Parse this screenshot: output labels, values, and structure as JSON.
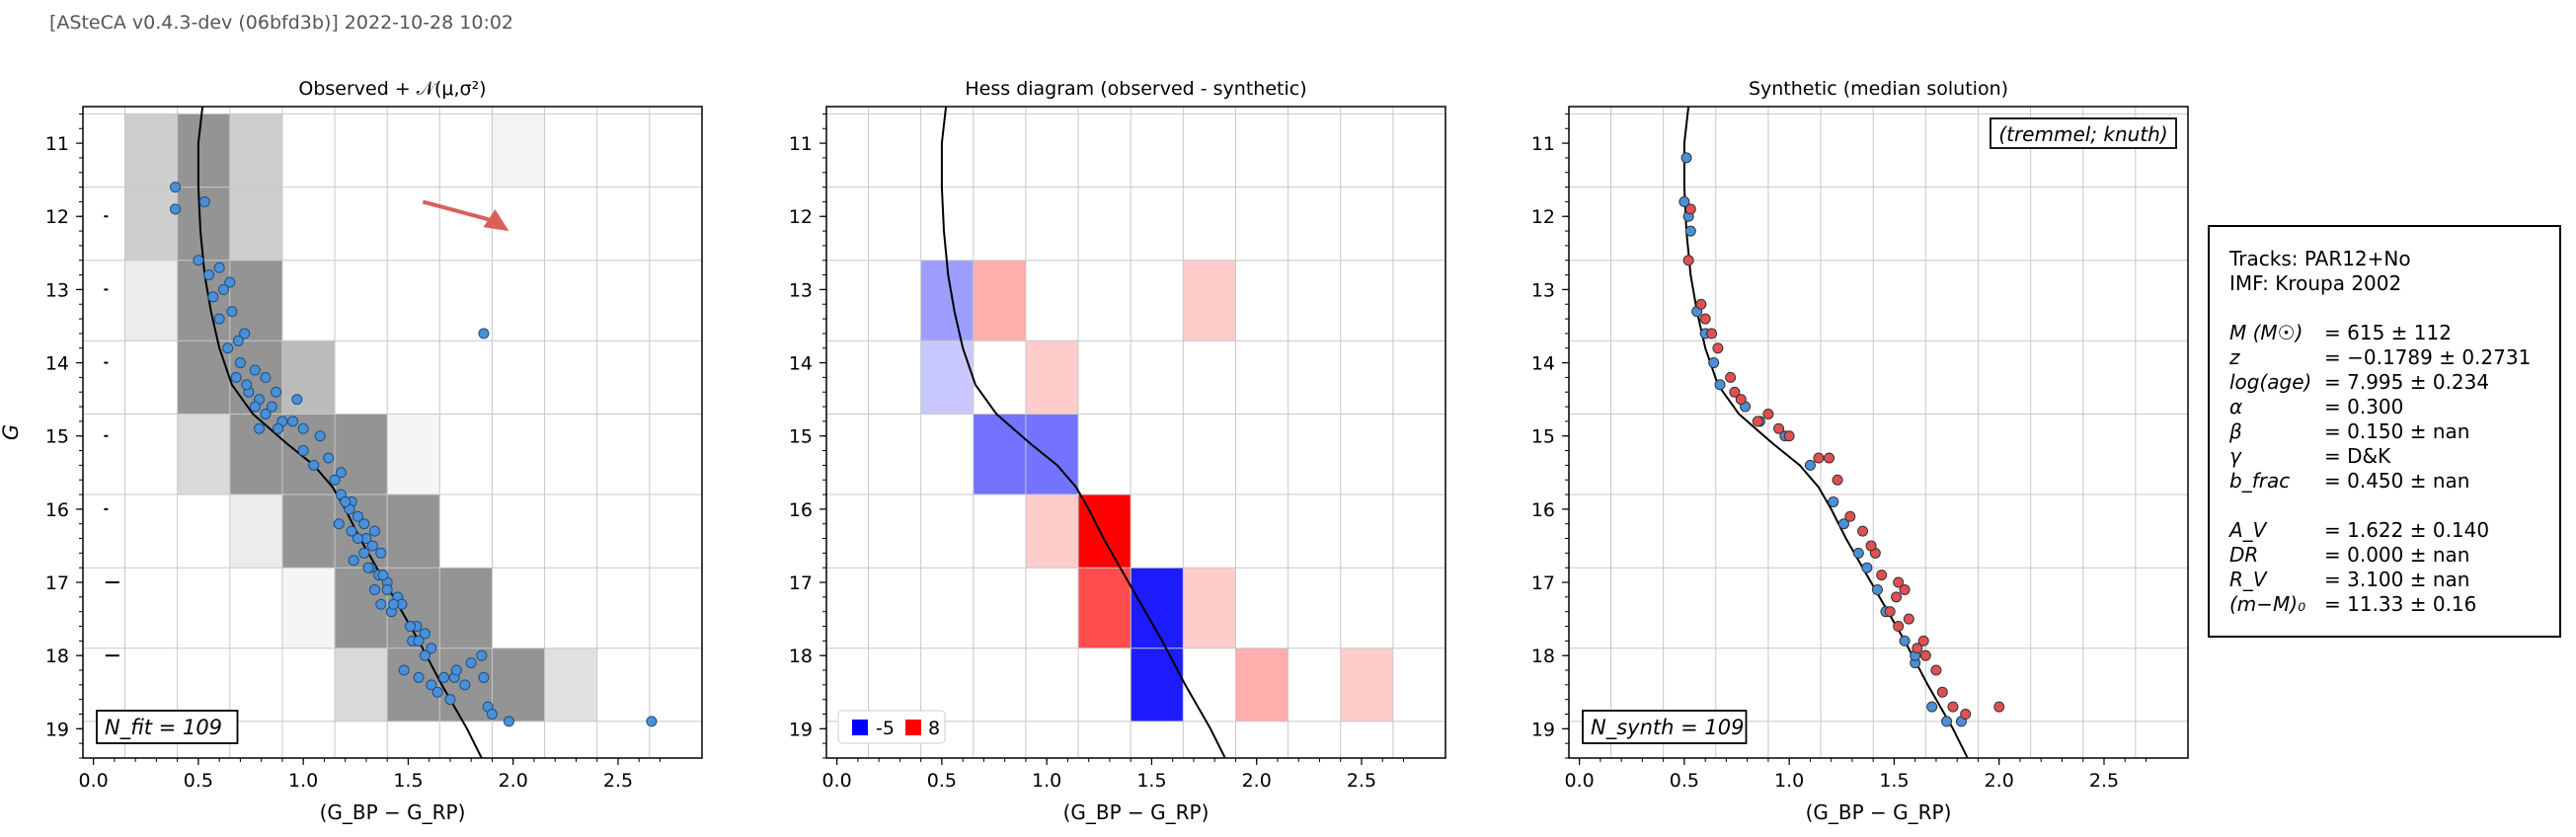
{
  "header": "[ASteCA v0.4.3-dev (06bfd3b)] 2022-10-28 10:02",
  "panels": {
    "observed": {
      "title": "Observed + 𝒩(μ,σ²)",
      "ylabel": "G",
      "xlabel": "(G_BP − G_RP)",
      "label": "N_fit = 109"
    },
    "hess": {
      "title": "Hess diagram (observed - synthetic)",
      "xlabel": "(G_BP − G_RP)"
    },
    "synthetic": {
      "title": "Synthetic (median solution)",
      "xlabel": "(G_BP − G_RP)",
      "label": "N_synth = 109",
      "box": "(tremmel; knuth)"
    }
  },
  "info": {
    "tracks": "Tracks: PAR12+No",
    "imf": "IMF: Kroupa 2002",
    "params": [
      {
        "k": "M (M☉)",
        "v": "=  615 ± 112"
      },
      {
        "k": "z",
        "v": "=  −0.1789 ± 0.2731"
      },
      {
        "k": "log(age)",
        "v": "=  7.995 ± 0.234"
      },
      {
        "k": "α",
        "v": "=  0.300"
      },
      {
        "k": "β",
        "v": "=  0.150 ± nan"
      },
      {
        "k": "γ",
        "v": "=  D&K"
      },
      {
        "k": "b_frac",
        "v": "=  0.450 ± nan"
      },
      {
        "k": "",
        "v": ""
      },
      {
        "k": "A_V",
        "v": "=  1.622 ± 0.140"
      },
      {
        "k": "DR",
        "v": "=  0.000 ± nan"
      },
      {
        "k": "R_V",
        "v": "=  3.100 ± nan"
      },
      {
        "k": "(m−M)₀",
        "v": "=  11.33 ± 0.16"
      }
    ]
  },
  "chart_data": [
    {
      "type": "scatter",
      "title": "Observed + 𝒩(μ,σ²)",
      "xlabel": "(G_BP − G_RP)",
      "ylabel": "G",
      "xlim": [
        -0.05,
        2.9
      ],
      "ylim": [
        19.4,
        10.5
      ],
      "xticks": [
        "0.0",
        "0.5",
        "1.0",
        "1.5",
        "2.0",
        "2.5"
      ],
      "yticks": [
        "11",
        "12",
        "13",
        "14",
        "15",
        "16",
        "17",
        "18",
        "19"
      ],
      "xedges": [
        0.15,
        0.4,
        0.65,
        0.9,
        1.15,
        1.4,
        1.65,
        1.9,
        2.15,
        2.4,
        2.65
      ],
      "yedges": [
        10.6,
        11.6,
        12.6,
        13.7,
        14.7,
        15.8,
        16.8,
        17.9,
        18.9
      ],
      "density_grid": [
        [
          0.25,
          0.55,
          0.25,
          0,
          0,
          0,
          0,
          0.06,
          0,
          0
        ],
        [
          0.25,
          0.55,
          0.25,
          0,
          0,
          0,
          0,
          0,
          0,
          0
        ],
        [
          0.1,
          0.55,
          0.55,
          0,
          0,
          0,
          0,
          0,
          0,
          0
        ],
        [
          0,
          0.55,
          0.55,
          0.35,
          0,
          0,
          0,
          0,
          0,
          0
        ],
        [
          0,
          0.2,
          0.55,
          0.55,
          0.55,
          0.05,
          0,
          0,
          0,
          0
        ],
        [
          0,
          0,
          0.1,
          0.55,
          0.55,
          0.55,
          0,
          0,
          0,
          0
        ],
        [
          0,
          0,
          0,
          0.05,
          0.55,
          0.55,
          0.55,
          0,
          0,
          0
        ],
        [
          0,
          0,
          0,
          0,
          0.2,
          0.55,
          0.55,
          0.55,
          0.15,
          0
        ]
      ],
      "errors": [
        [
          0.06,
          12.0
        ],
        [
          0.06,
          13.0
        ],
        [
          0.06,
          14.0
        ],
        [
          0.06,
          15.0
        ],
        [
          0.06,
          16.0
        ],
        [
          0.09,
          17.0
        ],
        [
          0.09,
          18.0
        ]
      ],
      "arrow": {
        "from": [
          1.57,
          11.8
        ],
        "to": [
          1.98,
          12.2
        ]
      },
      "points": [
        [
          0.39,
          11.6
        ],
        [
          0.39,
          11.9
        ],
        [
          0.53,
          11.8
        ],
        [
          0.5,
          12.6
        ],
        [
          0.55,
          12.8
        ],
        [
          0.6,
          12.7
        ],
        [
          0.65,
          12.9
        ],
        [
          0.62,
          13.0
        ],
        [
          0.57,
          13.1
        ],
        [
          0.66,
          13.3
        ],
        [
          0.6,
          13.4
        ],
        [
          0.72,
          13.6
        ],
        [
          0.69,
          13.7
        ],
        [
          0.64,
          13.8
        ],
        [
          0.7,
          14.0
        ],
        [
          0.68,
          14.2
        ],
        [
          0.74,
          14.4
        ],
        [
          0.79,
          14.5
        ],
        [
          0.85,
          14.6
        ],
        [
          0.77,
          14.6
        ],
        [
          0.82,
          14.7
        ],
        [
          0.9,
          14.8
        ],
        [
          0.97,
          14.5
        ],
        [
          0.87,
          14.4
        ],
        [
          0.82,
          14.2
        ],
        [
          0.79,
          14.9
        ],
        [
          0.95,
          14.8
        ],
        [
          1.0,
          14.9
        ],
        [
          1.08,
          15.0
        ],
        [
          1.12,
          15.3
        ],
        [
          1.18,
          15.5
        ],
        [
          1.0,
          15.2
        ],
        [
          1.05,
          15.4
        ],
        [
          1.18,
          15.8
        ],
        [
          1.23,
          15.9
        ],
        [
          1.22,
          16.0
        ],
        [
          1.26,
          16.1
        ],
        [
          1.29,
          16.2
        ],
        [
          1.17,
          16.2
        ],
        [
          1.23,
          16.3
        ],
        [
          1.3,
          16.4
        ],
        [
          1.33,
          16.5
        ],
        [
          1.29,
          16.6
        ],
        [
          1.37,
          16.6
        ],
        [
          1.24,
          16.7
        ],
        [
          1.32,
          16.8
        ],
        [
          1.36,
          16.9
        ],
        [
          1.4,
          17.0
        ],
        [
          1.34,
          17.1
        ],
        [
          1.45,
          17.2
        ],
        [
          1.37,
          17.3
        ],
        [
          1.42,
          17.4
        ],
        [
          1.54,
          17.6
        ],
        [
          1.58,
          17.7
        ],
        [
          1.52,
          17.8
        ],
        [
          1.61,
          17.9
        ],
        [
          1.58,
          18.0
        ],
        [
          1.48,
          18.2
        ],
        [
          1.55,
          18.3
        ],
        [
          1.61,
          18.4
        ],
        [
          1.67,
          18.3
        ],
        [
          1.64,
          18.5
        ],
        [
          1.72,
          18.3
        ],
        [
          1.77,
          18.4
        ],
        [
          1.85,
          18.0
        ],
        [
          1.86,
          18.3
        ],
        [
          1.88,
          18.7
        ],
        [
          1.9,
          18.8
        ],
        [
          1.98,
          18.9
        ],
        [
          1.8,
          18.1
        ],
        [
          1.73,
          18.2
        ],
        [
          1.55,
          17.8
        ],
        [
          1.47,
          17.3
        ],
        [
          1.38,
          16.9
        ],
        [
          1.86,
          13.6
        ],
        [
          2.66,
          18.9
        ],
        [
          1.15,
          15.6
        ],
        [
          1.26,
          16.4
        ],
        [
          1.4,
          17.1
        ],
        [
          1.51,
          17.6
        ],
        [
          0.77,
          14.1
        ],
        [
          0.88,
          14.9
        ],
        [
          1.2,
          15.9
        ],
        [
          1.31,
          16.8
        ],
        [
          1.43,
          17.3
        ],
        [
          1.7,
          18.6
        ],
        [
          0.73,
          14.3
        ],
        [
          1.34,
          16.3
        ]
      ]
    },
    {
      "type": "heatmap",
      "title": "Hess diagram (observed - synthetic)",
      "xlabel": "(G_BP − G_RP)",
      "legend": [
        "-5",
        "8"
      ],
      "cells": [
        {
          "col": 1,
          "row": 2,
          "v": -2
        },
        {
          "col": 2,
          "row": 2,
          "v": 2
        },
        {
          "col": 6,
          "row": 2,
          "v": 1
        },
        {
          "col": 1,
          "row": 3,
          "v": -1
        },
        {
          "col": 3,
          "row": 3,
          "v": 1
        },
        {
          "col": 2,
          "row": 4,
          "v": -3
        },
        {
          "col": 3,
          "row": 4,
          "v": -3
        },
        {
          "col": 3,
          "row": 5,
          "v": 1
        },
        {
          "col": 4,
          "row": 5,
          "v": 8
        },
        {
          "col": 4,
          "row": 6,
          "v": 5
        },
        {
          "col": 5,
          "row": 6,
          "v": -5
        },
        {
          "col": 6,
          "row": 6,
          "v": 1
        },
        {
          "col": 5,
          "row": 7,
          "v": -5
        },
        {
          "col": 7,
          "row": 7,
          "v": 2
        },
        {
          "col": 9,
          "row": 7,
          "v": 1
        }
      ]
    },
    {
      "type": "scatter",
      "title": "Synthetic (median solution)",
      "xlabel": "(G_BP − G_RP)",
      "series": [
        {
          "color": "#4a90d9",
          "points": [
            [
              0.51,
              11.2
            ],
            [
              0.5,
              11.8
            ],
            [
              0.52,
              12.0
            ],
            [
              0.53,
              12.2
            ],
            [
              0.56,
              13.3
            ],
            [
              0.6,
              13.6
            ],
            [
              0.64,
              14.0
            ],
            [
              0.67,
              14.3
            ],
            [
              0.79,
              14.6
            ],
            [
              0.86,
              14.8
            ],
            [
              0.98,
              15.0
            ],
            [
              1.1,
              15.4
            ],
            [
              1.21,
              15.9
            ],
            [
              1.26,
              16.2
            ],
            [
              1.33,
              16.6
            ],
            [
              1.37,
              16.8
            ],
            [
              1.42,
              17.1
            ],
            [
              1.46,
              17.4
            ],
            [
              1.55,
              17.8
            ],
            [
              1.6,
              18.1
            ],
            [
              1.68,
              18.7
            ],
            [
              1.75,
              18.9
            ],
            [
              1.82,
              18.9
            ],
            [
              1.6,
              18.0
            ]
          ]
        },
        {
          "color": "#e05050",
          "points": [
            [
              0.53,
              11.9
            ],
            [
              0.52,
              12.6
            ],
            [
              0.58,
              13.2
            ],
            [
              0.6,
              13.4
            ],
            [
              0.63,
              13.6
            ],
            [
              0.66,
              13.8
            ],
            [
              0.72,
              14.2
            ],
            [
              0.74,
              14.4
            ],
            [
              0.9,
              14.7
            ],
            [
              0.95,
              14.9
            ],
            [
              1.0,
              15.0
            ],
            [
              1.14,
              15.3
            ],
            [
              1.19,
              15.3
            ],
            [
              1.23,
              15.6
            ],
            [
              1.29,
              16.1
            ],
            [
              1.35,
              16.3
            ],
            [
              1.41,
              16.6
            ],
            [
              1.44,
              16.9
            ],
            [
              1.52,
              17.0
            ],
            [
              1.55,
              17.1
            ],
            [
              1.51,
              17.2
            ],
            [
              1.48,
              17.4
            ],
            [
              1.52,
              17.6
            ],
            [
              1.61,
              17.9
            ],
            [
              1.65,
              18.0
            ],
            [
              1.7,
              18.2
            ],
            [
              1.73,
              18.5
            ],
            [
              1.78,
              18.7
            ],
            [
              1.84,
              18.8
            ],
            [
              2.0,
              18.7
            ],
            [
              1.64,
              17.8
            ],
            [
              1.57,
              17.5
            ],
            [
              1.39,
              16.5
            ],
            [
              0.85,
              14.8
            ],
            [
              0.77,
              14.5
            ]
          ]
        }
      ]
    }
  ],
  "isochrone": [
    [
      0.52,
      10.5
    ],
    [
      0.5,
      11.0
    ],
    [
      0.5,
      11.6
    ],
    [
      0.51,
      12.2
    ],
    [
      0.53,
      12.8
    ],
    [
      0.56,
      13.3
    ],
    [
      0.6,
      13.8
    ],
    [
      0.66,
      14.3
    ],
    [
      0.76,
      14.7
    ],
    [
      0.92,
      15.1
    ],
    [
      1.05,
      15.4
    ],
    [
      1.14,
      15.7
    ],
    [
      1.2,
      16.0
    ],
    [
      1.27,
      16.4
    ],
    [
      1.35,
      16.8
    ],
    [
      1.45,
      17.3
    ],
    [
      1.55,
      17.8
    ],
    [
      1.66,
      18.4
    ],
    [
      1.78,
      19.0
    ],
    [
      1.85,
      19.4
    ]
  ]
}
